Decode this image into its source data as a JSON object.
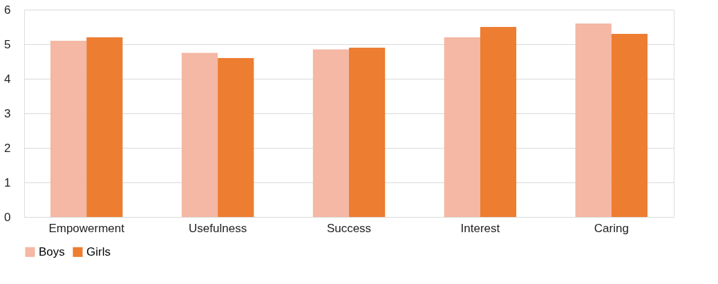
{
  "chart_data": {
    "type": "bar",
    "categories": [
      "Empowerment",
      "Usefulness",
      "Success",
      "Interest",
      "Caring"
    ],
    "series": [
      {
        "name": "Boys",
        "color": "#f4b8a4",
        "values": [
          5.1,
          4.75,
          4.85,
          5.2,
          5.6
        ]
      },
      {
        "name": "Girls",
        "color": "#ed7d31",
        "values": [
          5.2,
          4.6,
          4.9,
          5.5,
          5.3
        ]
      }
    ],
    "ylim": [
      0,
      6
    ],
    "yticks": [
      0,
      1,
      2,
      3,
      4,
      5,
      6
    ],
    "grid": "y",
    "legend": "bottom"
  }
}
